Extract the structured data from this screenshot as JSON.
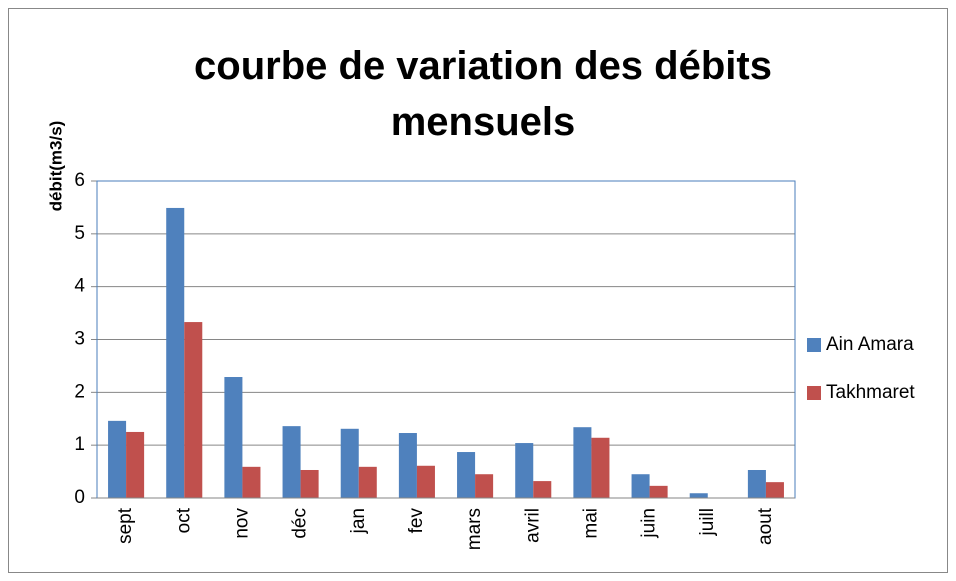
{
  "chart_data": {
    "type": "bar",
    "title": "courbe de variation des débits mensuels",
    "y_label": "débit(m3/s)",
    "categories": [
      "sept",
      "oct",
      "nov",
      "déc",
      "jan",
      "fev",
      "mars",
      "avril",
      "mai",
      "juin",
      "juill",
      "aout"
    ],
    "series": [
      {
        "name": "Ain Amara",
        "color": "#4f81bd",
        "values": [
          1.46,
          5.49,
          2.29,
          1.36,
          1.31,
          1.23,
          0.87,
          1.04,
          1.34,
          0.45,
          0.09,
          0.53
        ]
      },
      {
        "name": "Takhmaret",
        "color": "#c0504d",
        "values": [
          1.25,
          3.33,
          0.59,
          0.53,
          0.59,
          0.61,
          0.45,
          0.32,
          1.14,
          0.23,
          0,
          0.3
        ]
      }
    ],
    "ylim": [
      0,
      6
    ],
    "yticks": [
      0,
      1,
      2,
      3,
      4,
      5,
      6
    ],
    "grid": true,
    "legend": "right"
  }
}
